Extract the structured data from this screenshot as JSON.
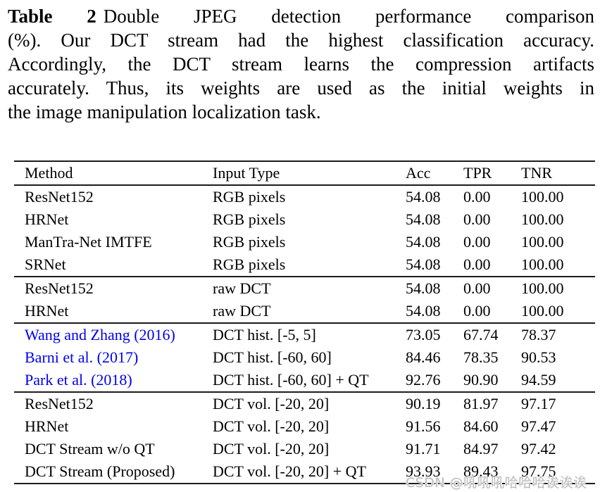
{
  "caption": {
    "label": "Table 2",
    "lines": [
      "Double JPEG detection performance comparison",
      "(%). Our DCT stream had the highest classification accuracy.",
      "Accordingly, the DCT stream learns the compression artifacts",
      "accurately. Thus, its weights are used as the initial weights in",
      "the image manipulation localization task."
    ]
  },
  "table": {
    "columns": [
      "Method",
      "Input Type",
      "Acc",
      "TPR",
      "TNR"
    ],
    "sections": [
      {
        "name": "rgb-pixels",
        "rows": [
          [
            "ResNet152",
            "RGB pixels",
            "54.08",
            "0.00",
            "100.00"
          ],
          [
            "HRNet",
            "RGB pixels",
            "54.08",
            "0.00",
            "100.00"
          ],
          [
            "ManTra-Net IMTFE",
            "RGB pixels",
            "54.08",
            "0.00",
            "100.00"
          ],
          [
            "SRNet",
            "RGB pixels",
            "54.08",
            "0.00",
            "100.00"
          ]
        ]
      },
      {
        "name": "raw-dct",
        "rows": [
          [
            "ResNet152",
            "raw DCT",
            "54.08",
            "0.00",
            "100.00"
          ],
          [
            "HRNet",
            "raw DCT",
            "54.08",
            "0.00",
            "100.00"
          ]
        ]
      },
      {
        "name": "dct-histogram-citations",
        "rows": [
          [
            "Wang and Zhang (2016)",
            "DCT hist. [-5, 5]",
            "73.05",
            "67.74",
            "78.37"
          ],
          [
            "Barni et al. (2017)",
            "DCT hist. [-60, 60]",
            "84.46",
            "78.35",
            "90.53"
          ],
          [
            "Park et al. (2018)",
            "DCT hist. [-60, 60] + QT",
            "92.76",
            "90.90",
            "94.59"
          ]
        ]
      },
      {
        "name": "dct-volume",
        "rows": [
          [
            "ResNet152",
            "DCT vol. [-20, 20]",
            "90.19",
            "81.97",
            "97.17"
          ],
          [
            "HRNet",
            "DCT vol. [-20, 20]",
            "91.56",
            "84.60",
            "97.47"
          ],
          [
            "DCT Stream w/o QT",
            "DCT vol. [-20, 20]",
            "91.71",
            "84.97",
            "97.42"
          ],
          [
            "DCT Stream (Proposed)",
            "DCT vol. [-20, 20] + QT",
            "93.93",
            "89.43",
            "97.75"
          ]
        ]
      }
    ]
  },
  "watermark": "CSDN @吼吼吼哈哈哈诶诶诶",
  "colors": {
    "citation_link": "#0000EE",
    "body_text": "#000000",
    "watermark_gray": "#bcbcbc"
  }
}
